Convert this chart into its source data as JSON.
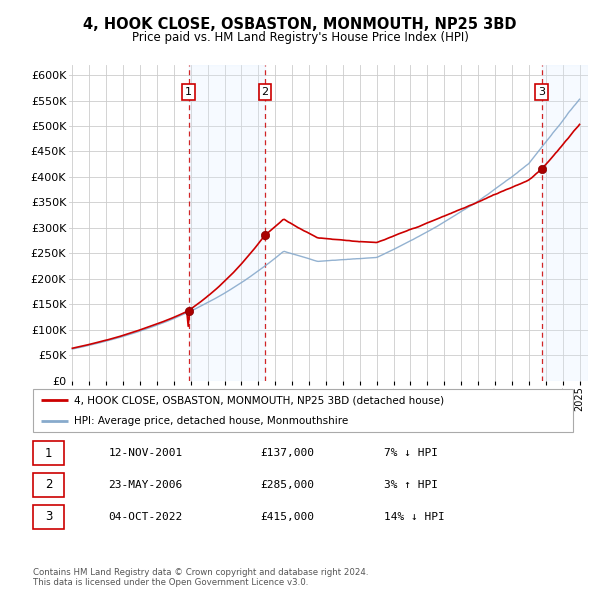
{
  "title": "4, HOOK CLOSE, OSBASTON, MONMOUTH, NP25 3BD",
  "subtitle": "Price paid vs. HM Land Registry's House Price Index (HPI)",
  "xlim": [
    1994.8,
    2025.5
  ],
  "ylim": [
    0,
    620000
  ],
  "yticks": [
    0,
    50000,
    100000,
    150000,
    200000,
    250000,
    300000,
    350000,
    400000,
    450000,
    500000,
    550000,
    600000
  ],
  "ytick_labels": [
    "£0",
    "£50K",
    "£100K",
    "£150K",
    "£200K",
    "£250K",
    "£300K",
    "£350K",
    "£400K",
    "£450K",
    "£500K",
    "£550K",
    "£600K"
  ],
  "xticks": [
    1995,
    1996,
    1997,
    1998,
    1999,
    2000,
    2001,
    2002,
    2003,
    2004,
    2005,
    2006,
    2007,
    2008,
    2009,
    2010,
    2011,
    2012,
    2013,
    2014,
    2015,
    2016,
    2017,
    2018,
    2019,
    2020,
    2021,
    2022,
    2023,
    2024,
    2025
  ],
  "sale_dates": [
    2001.87,
    2006.39,
    2022.76
  ],
  "sale_prices": [
    137000,
    285000,
    415000
  ],
  "sale_labels": [
    "1",
    "2",
    "3"
  ],
  "sale_info": [
    {
      "label": "1",
      "date": "12-NOV-2001",
      "price": "£137,000",
      "hpi": "7% ↓ HPI"
    },
    {
      "label": "2",
      "date": "23-MAY-2006",
      "price": "£285,000",
      "hpi": "3% ↑ HPI"
    },
    {
      "label": "3",
      "date": "04-OCT-2022",
      "price": "£415,000",
      "hpi": "14% ↓ HPI"
    }
  ],
  "legend_entries": [
    {
      "label": "4, HOOK CLOSE, OSBASTON, MONMOUTH, NP25 3BD (detached house)",
      "color": "#cc0000",
      "lw": 2
    },
    {
      "label": "HPI: Average price, detached house, Monmouthshire",
      "color": "#88aacc",
      "lw": 1.5
    }
  ],
  "footer": "Contains HM Land Registry data © Crown copyright and database right 2024.\nThis data is licensed under the Open Government Licence v3.0.",
  "shade_color": "#ddeeff",
  "vline_color": "#cc0000",
  "grid_color": "#cccccc",
  "background_color": "#ffffff"
}
